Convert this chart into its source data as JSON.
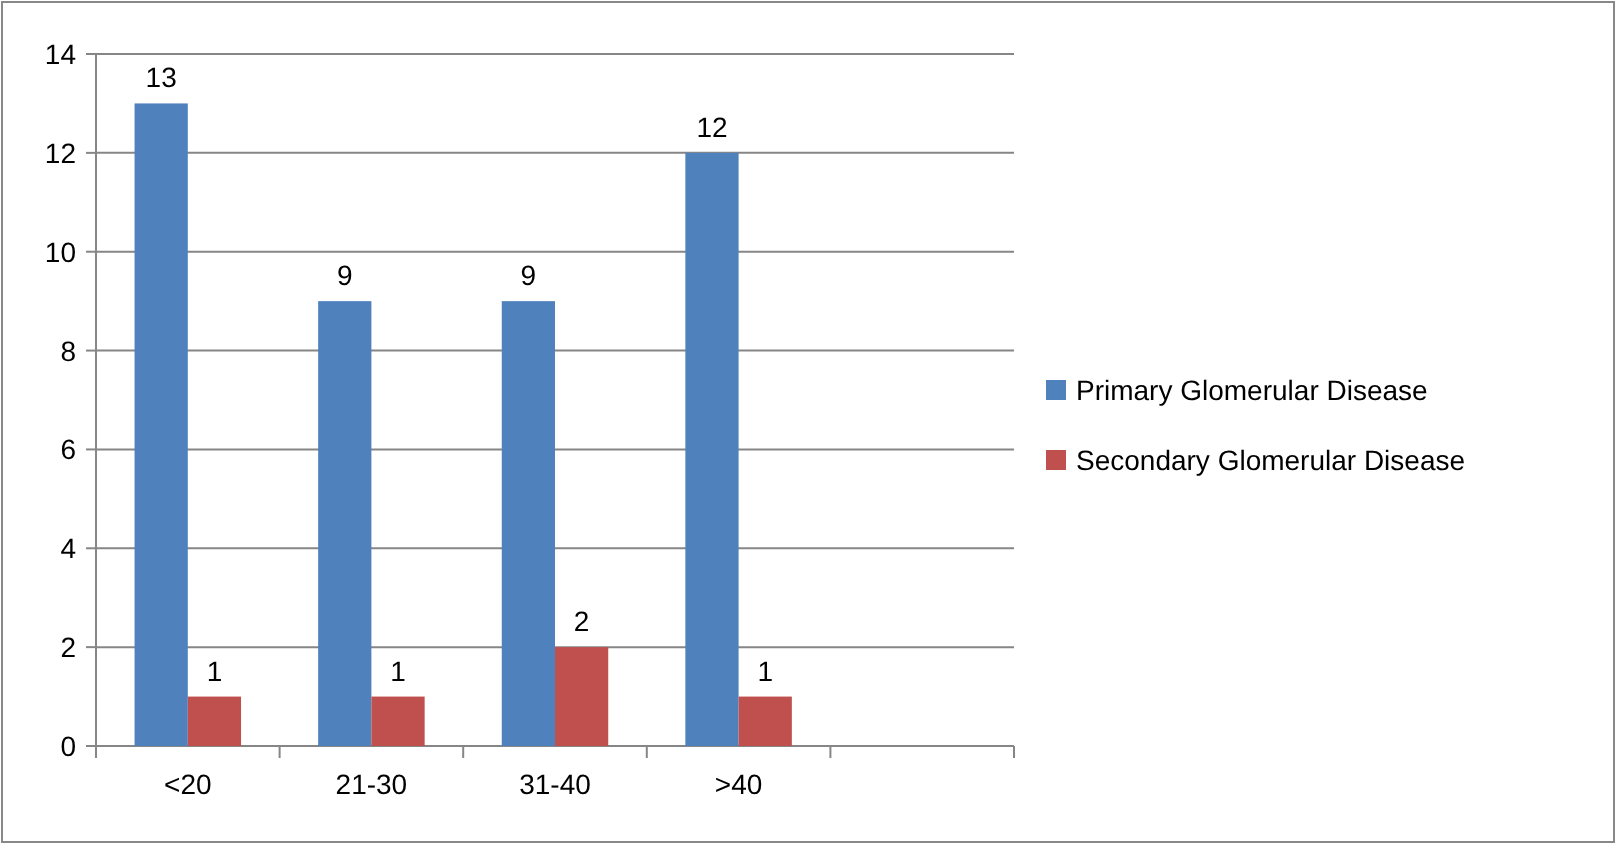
{
  "chart_data": {
    "type": "bar",
    "categories": [
      "<20",
      "21-30",
      "31-40",
      ">40",
      null
    ],
    "series": [
      {
        "name": "Primary Glomerular Disease",
        "color": "#4f81bd",
        "values": [
          13,
          9,
          9,
          12,
          null
        ]
      },
      {
        "name": "Secondary Glomerular Disease",
        "color": "#c0504d",
        "values": [
          1,
          1,
          2,
          1,
          null
        ]
      }
    ],
    "ylim": [
      0,
      14
    ],
    "yticks": [
      0,
      2,
      4,
      6,
      8,
      10,
      12,
      14
    ],
    "grid": "y",
    "legend": "right",
    "data_labels": true
  }
}
